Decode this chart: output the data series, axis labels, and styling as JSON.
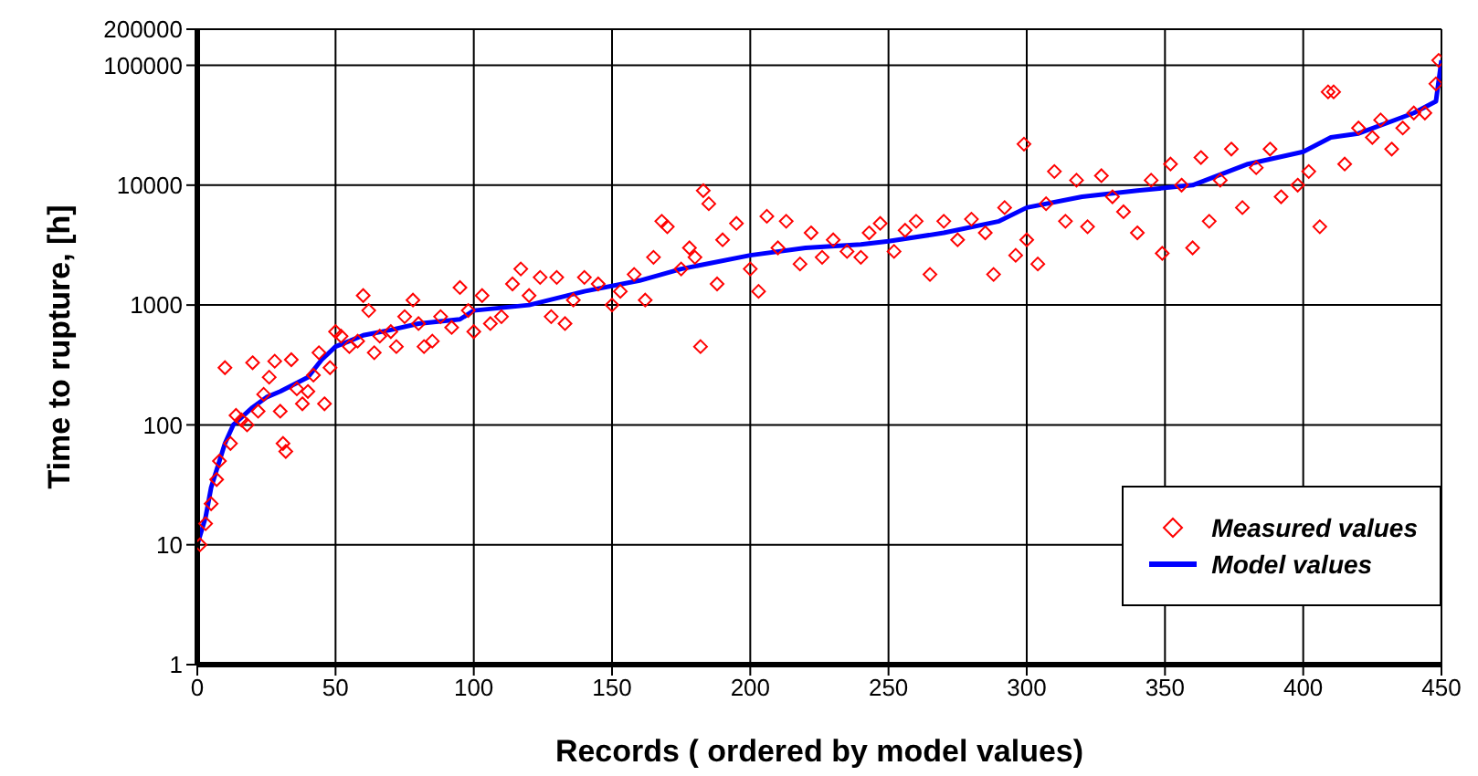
{
  "chart_data": {
    "type": "scatter",
    "xlabel": "Records   ( ordered by model values)",
    "ylabel": "Time to rupture, [h]",
    "log": "y",
    "grid": true,
    "legend": "bottom right",
    "xlim": [
      0,
      450
    ],
    "xticks": [
      0,
      50,
      100,
      150,
      200,
      250,
      300,
      350,
      400,
      450
    ],
    "ylim": [
      1,
      200000
    ],
    "yticks": [
      1,
      10,
      100,
      1000,
      10000,
      100000,
      200000
    ],
    "series": [
      {
        "name": "Measured values",
        "type": "scatter",
        "marker": "diamond",
        "color": "#ff0000",
        "x": [
          1,
          3,
          5,
          7,
          8,
          10,
          12,
          14,
          16,
          18,
          20,
          22,
          24,
          26,
          28,
          30,
          31,
          32,
          34,
          36,
          38,
          40,
          42,
          44,
          46,
          48,
          50,
          52,
          55,
          58,
          60,
          62,
          64,
          66,
          70,
          72,
          75,
          78,
          80,
          82,
          85,
          88,
          92,
          95,
          98,
          100,
          103,
          106,
          110,
          114,
          117,
          120,
          124,
          128,
          130,
          133,
          136,
          140,
          145,
          150,
          153,
          158,
          162,
          165,
          168,
          170,
          175,
          178,
          180,
          182,
          183,
          185,
          188,
          190,
          195,
          200,
          203,
          206,
          210,
          213,
          218,
          222,
          226,
          230,
          235,
          240,
          243,
          247,
          252,
          256,
          260,
          265,
          270,
          275,
          280,
          285,
          288,
          292,
          296,
          299,
          300,
          304,
          307,
          310,
          314,
          318,
          322,
          327,
          331,
          335,
          340,
          345,
          349,
          352,
          356,
          360,
          363,
          366,
          370,
          374,
          378,
          383,
          388,
          392,
          398,
          402,
          406,
          409,
          411,
          415,
          420,
          425,
          428,
          432,
          436,
          440,
          444,
          448,
          449
        ],
        "values": [
          10,
          15,
          22,
          35,
          50,
          300,
          70,
          120,
          110,
          100,
          330,
          130,
          180,
          250,
          340,
          130,
          70,
          60,
          350,
          200,
          150,
          190,
          260,
          400,
          150,
          300,
          600,
          550,
          450,
          500,
          1200,
          900,
          400,
          550,
          600,
          450,
          800,
          1100,
          700,
          450,
          500,
          800,
          650,
          1400,
          900,
          600,
          1200,
          700,
          800,
          1500,
          2000,
          1200,
          1700,
          800,
          1700,
          700,
          1100,
          1700,
          1500,
          1000,
          1300,
          1800,
          1100,
          2500,
          5000,
          4500,
          2000,
          3000,
          2500,
          450,
          9000,
          7000,
          1500,
          3500,
          4800,
          2000,
          1300,
          5500,
          3000,
          5000,
          2200,
          4000,
          2500,
          3500,
          2800,
          2500,
          4000,
          4800,
          2800,
          4200,
          5000,
          1800,
          5000,
          3500,
          5200,
          4000,
          1800,
          6500,
          2600,
          22000,
          3500,
          2200,
          7000,
          13000,
          5000,
          11000,
          4500,
          12000,
          8000,
          6000,
          4000,
          11000,
          2700,
          15000,
          10000,
          3000,
          17000,
          5000,
          11000,
          20000,
          6500,
          14000,
          20000,
          8000,
          10000,
          13000,
          4500,
          60000,
          60000,
          15000,
          30000,
          25000,
          35000,
          20000,
          30000,
          40000,
          40000,
          70000,
          110000
        ]
      },
      {
        "name": "Model values",
        "type": "line",
        "marker": "none",
        "line_style": "solid",
        "color": "#0000ff",
        "x": [
          0,
          3,
          5,
          8,
          10,
          13,
          20,
          25,
          30,
          40,
          45,
          50,
          55,
          60,
          70,
          80,
          95,
          100,
          120,
          140,
          160,
          175,
          200,
          220,
          240,
          250,
          270,
          290,
          300,
          320,
          340,
          360,
          380,
          400,
          410,
          420,
          440,
          448,
          450
        ],
        "values": [
          10,
          17,
          30,
          50,
          70,
          100,
          140,
          170,
          190,
          250,
          350,
          450,
          500,
          560,
          620,
          700,
          760,
          900,
          1000,
          1300,
          1600,
          2000,
          2600,
          3000,
          3200,
          3400,
          4000,
          5000,
          6500,
          8000,
          9000,
          10000,
          15000,
          19000,
          25000,
          27000,
          40000,
          50000,
          110000
        ]
      }
    ]
  }
}
